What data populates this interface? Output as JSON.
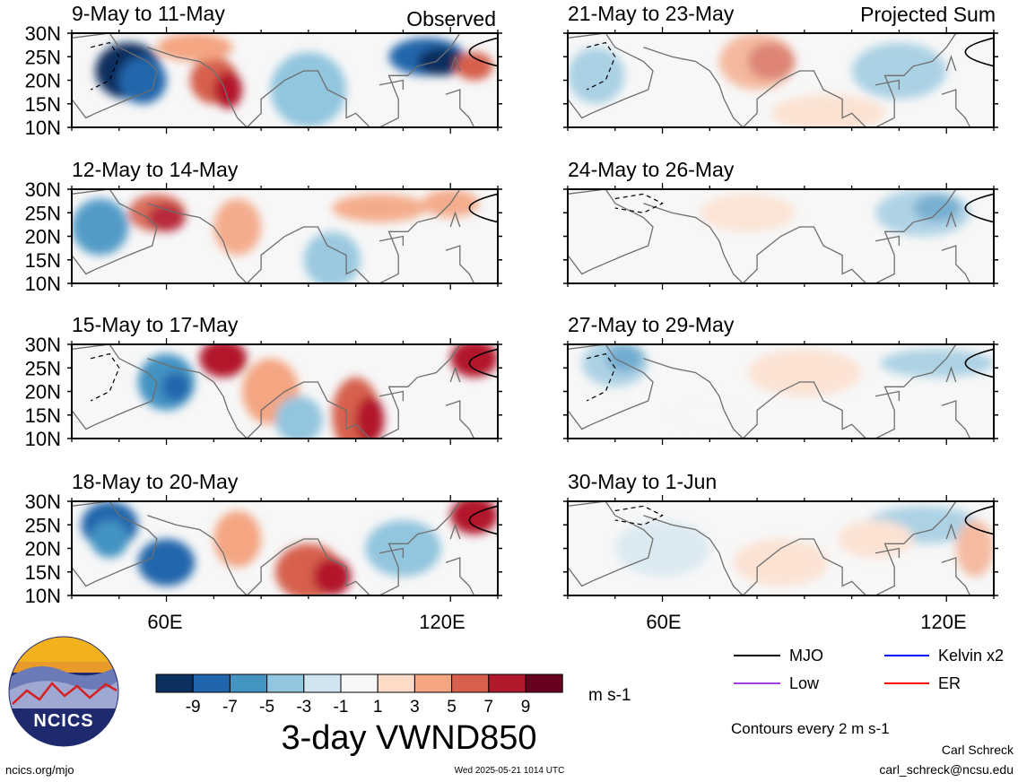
{
  "figure": {
    "variable_title": "3-day VWND850",
    "units": "m s-1",
    "contour_note": "Contours every 2 m s-1",
    "author": "Carl Schreck",
    "email": "carl_schreck@ncsu.edu",
    "website": "ncics.org/mjo",
    "timestamp": "Wed 2025-05-21 1014 UTC",
    "logo_text": "NCICS"
  },
  "columns": [
    {
      "label": "Observed"
    },
    {
      "label": "Projected Sum"
    }
  ],
  "lat_labels": [
    "30N",
    "25N",
    "20N",
    "15N",
    "10N"
  ],
  "lon_labels": [
    "60E",
    "120E"
  ],
  "panels": [
    {
      "title": "9-May to 11-May",
      "col": 0,
      "row": 0,
      "scale": 1.0
    },
    {
      "title": "12-May to 14-May",
      "col": 0,
      "row": 1,
      "scale": 0.8
    },
    {
      "title": "15-May to 17-May",
      "col": 0,
      "row": 2,
      "scale": 1.0
    },
    {
      "title": "18-May to 20-May",
      "col": 0,
      "row": 3,
      "scale": 1.0
    },
    {
      "title": "21-May to 23-May",
      "col": 1,
      "row": 0,
      "scale": 0.45
    },
    {
      "title": "24-May to 26-May",
      "col": 1,
      "row": 1,
      "scale": 0.35
    },
    {
      "title": "27-May to 29-May",
      "col": 1,
      "row": 2,
      "scale": 0.4
    },
    {
      "title": "30-May to 1-Jun",
      "col": 1,
      "row": 3,
      "scale": 0.4
    }
  ],
  "colorbar": {
    "colors": [
      "#0b2f5e",
      "#2166ac",
      "#4393c3",
      "#92c5de",
      "#d1e5f0",
      "#f7f7f7",
      "#fddbc7",
      "#f4a582",
      "#d6604d",
      "#b2182b",
      "#67001f"
    ],
    "labels": [
      "-9",
      "-7",
      "-5",
      "-3",
      "-1",
      "1",
      "3",
      "5",
      "7",
      "9"
    ]
  },
  "legend": [
    {
      "name": "MJO",
      "color": "#000000"
    },
    {
      "name": "Kelvin x2",
      "color": "#0000ff"
    },
    {
      "name": "Low",
      "color": "#a040e0"
    },
    {
      "name": "ER",
      "color": "#ff0000"
    }
  ]
}
